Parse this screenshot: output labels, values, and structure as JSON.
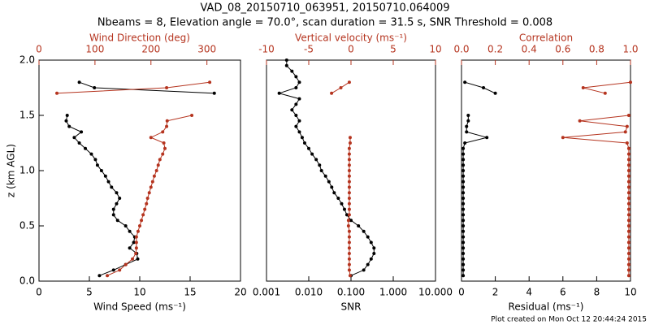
{
  "title": "VAD_08_20150710_063951, 20150710.064009",
  "subtitle": "Nbeams = 8, Elevation angle = 70.0°, scan duration = 31.5 s, SNR Threshold = 0.008",
  "footer": "Plot created on Mon Oct 12 20:44:24 2015",
  "chart_data": [
    {
      "type": "profile",
      "ylabel": "z (km AGL)",
      "ylim": [
        0,
        2
      ],
      "yticks": [
        {
          "value": 0,
          "label": "0.0"
        },
        0.5,
        {
          "value": 1,
          "label": "1.0"
        },
        1.5,
        {
          "value": 2,
          "label": "2.0"
        }
      ],
      "xlabel": "Wind Speed (ms⁻¹)",
      "xlim": [
        0,
        20
      ],
      "xticks": [
        0,
        5,
        10,
        15,
        20
      ],
      "x2label": "Wind Direction (deg)",
      "x2lim": [
        0,
        360
      ],
      "x2ticks": [
        0,
        100,
        200,
        300
      ],
      "z": [
        0.05,
        0.1,
        0.15,
        0.2,
        0.25,
        0.3,
        0.35,
        0.4,
        0.45,
        0.5,
        0.55,
        0.6,
        0.65,
        0.7,
        0.75,
        0.8,
        0.85,
        0.9,
        0.95,
        1.0,
        1.05,
        1.1,
        1.15,
        1.2,
        1.25,
        1.3,
        1.35,
        1.4,
        1.45,
        1.5,
        1.55,
        1.6,
        1.65,
        1.7,
        1.75,
        1.8,
        1.85,
        1.9,
        1.95,
        2.0
      ],
      "series": [
        {
          "color": "#000000",
          "axis": "x",
          "values": [
            6.0,
            7.4,
            8.6,
            9.8,
            9.7,
            9.0,
            9.4,
            9.5,
            9.0,
            8.6,
            7.8,
            7.4,
            7.4,
            7.7,
            8.0,
            7.7,
            7.2,
            6.9,
            6.6,
            6.2,
            5.8,
            5.6,
            5.2,
            4.6,
            4.0,
            3.5,
            4.2,
            3.0,
            2.7,
            2.8,
            null,
            null,
            null,
            17.4,
            5.5,
            4.0,
            null,
            null,
            null,
            null
          ]
        },
        {
          "color": "#b5341f",
          "axis": "x2",
          "values": [
            122,
            144,
            155,
            167,
            173,
            174,
            174,
            174,
            177,
            180,
            183,
            186,
            189,
            192,
            194,
            197,
            200,
            203,
            206,
            210,
            213,
            216,
            221,
            225,
            223,
            200,
            221,
            228,
            229,
            273,
            null,
            null,
            null,
            32,
            228,
            305,
            null,
            null,
            null,
            null
          ]
        }
      ]
    },
    {
      "type": "profile",
      "ylim": [
        0,
        2
      ],
      "xlabel": "SNR",
      "xscale": "log",
      "xlim": [
        0.001,
        10
      ],
      "xticks": [
        0.001,
        {
          "value": 0.01,
          "label": "0.010"
        },
        {
          "value": 0.1,
          "label": "0.100"
        },
        {
          "value": 1,
          "label": "1.000"
        },
        {
          "value": 10,
          "label": "10.000"
        }
      ],
      "x2label": "Vertical velocity (ms⁻¹)",
      "x2lim": [
        -10,
        10
      ],
      "x2ticks": [
        -10,
        -5,
        0,
        5,
        10
      ],
      "z": [
        0.05,
        0.1,
        0.15,
        0.2,
        0.25,
        0.3,
        0.35,
        0.4,
        0.45,
        0.5,
        0.55,
        0.6,
        0.65,
        0.7,
        0.75,
        0.8,
        0.85,
        0.9,
        0.95,
        1.0,
        1.05,
        1.1,
        1.15,
        1.2,
        1.25,
        1.3,
        1.35,
        1.4,
        1.45,
        1.5,
        1.55,
        1.6,
        1.65,
        1.7,
        1.75,
        1.8,
        1.85,
        1.9,
        1.95,
        2.0
      ],
      "series": [
        {
          "color": "#000000",
          "axis": "x",
          "values": [
            0.1,
            0.2,
            0.25,
            0.3,
            0.35,
            0.35,
            0.3,
            0.25,
            0.2,
            0.15,
            0.1,
            0.08,
            0.07,
            0.06,
            0.05,
            0.04,
            0.035,
            0.03,
            0.025,
            0.02,
            0.018,
            0.015,
            0.012,
            0.01,
            0.008,
            0.007,
            0.006,
            0.005,
            0.006,
            0.005,
            0.004,
            0.005,
            0.006,
            0.002,
            0.005,
            0.006,
            0.005,
            0.004,
            0.003,
            0.003
          ]
        },
        {
          "color": "#b5341f",
          "axis": "x2",
          "values": [
            -0.1,
            -0.2,
            -0.2,
            -0.2,
            -0.2,
            -0.2,
            -0.2,
            -0.2,
            -0.2,
            -0.3,
            -0.3,
            -0.2,
            -0.2,
            -0.2,
            -0.2,
            -0.2,
            -0.2,
            -0.2,
            -0.2,
            -0.2,
            -0.2,
            -0.2,
            -0.2,
            -0.2,
            -0.1,
            -0.1,
            null,
            null,
            null,
            null,
            null,
            null,
            null,
            -2.3,
            -1.2,
            -0.2,
            null,
            null,
            null,
            null
          ]
        }
      ]
    },
    {
      "type": "profile",
      "ylim": [
        0,
        2
      ],
      "xlabel": "Residual (ms⁻¹)",
      "xlim": [
        0,
        10
      ],
      "xticks": [
        0,
        2,
        4,
        6,
        8,
        10
      ],
      "x2label": "Correlation",
      "x2lim": [
        0,
        1
      ],
      "x2ticks": [
        {
          "value": 0,
          "label": "0.0"
        },
        0.2,
        0.4,
        0.6,
        0.8,
        {
          "value": 1,
          "label": "1.0"
        }
      ],
      "z": [
        0.05,
        0.1,
        0.15,
        0.2,
        0.25,
        0.3,
        0.35,
        0.4,
        0.45,
        0.5,
        0.55,
        0.6,
        0.65,
        0.7,
        0.75,
        0.8,
        0.85,
        0.9,
        0.95,
        1.0,
        1.05,
        1.1,
        1.15,
        1.2,
        1.25,
        1.3,
        1.35,
        1.4,
        1.45,
        1.5,
        1.55,
        1.6,
        1.65,
        1.7,
        1.75,
        1.8,
        1.85,
        1.9,
        1.95,
        2.0
      ],
      "series": [
        {
          "color": "#000000",
          "axis": "x",
          "values": [
            0.1,
            0.1,
            0.1,
            0.1,
            0.1,
            0.1,
            0.1,
            0.1,
            0.1,
            0.1,
            0.1,
            0.1,
            0.1,
            0.1,
            0.1,
            0.1,
            0.1,
            0.1,
            0.1,
            0.1,
            0.1,
            0.1,
            0.1,
            0.1,
            0.2,
            1.5,
            0.3,
            0.3,
            0.4,
            0.4,
            null,
            null,
            null,
            2.0,
            1.3,
            0.2,
            null,
            null,
            null,
            null
          ]
        },
        {
          "color": "#b5341f",
          "axis": "x2",
          "values": [
            0.99,
            0.99,
            0.99,
            0.99,
            0.99,
            0.99,
            0.99,
            0.99,
            0.99,
            0.99,
            0.99,
            0.99,
            0.99,
            0.99,
            0.99,
            0.99,
            0.99,
            0.99,
            0.99,
            0.99,
            0.99,
            0.99,
            0.99,
            0.99,
            0.98,
            0.6,
            0.97,
            0.98,
            0.7,
            0.99,
            null,
            null,
            null,
            0.85,
            0.72,
            1.0,
            null,
            null,
            null,
            null
          ]
        }
      ]
    }
  ]
}
